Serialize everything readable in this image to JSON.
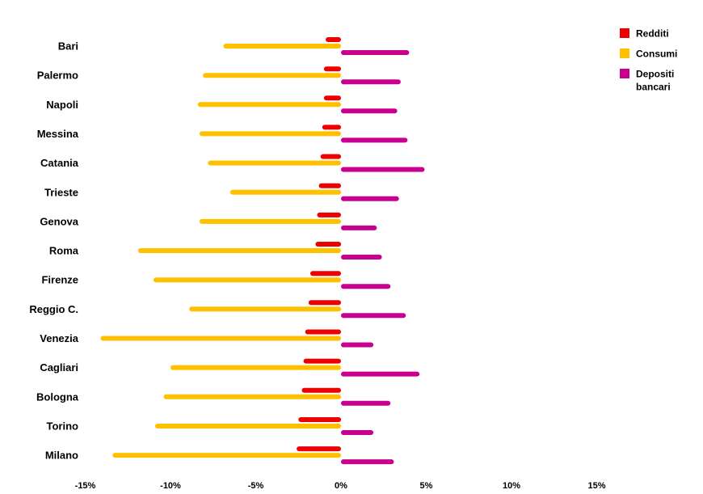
{
  "chart_data": {
    "type": "bar",
    "orientation": "horizontal",
    "categories": [
      "Bari",
      "Palermo",
      "Napoli",
      "Messina",
      "Catania",
      "Trieste",
      "Genova",
      "Roma",
      "Firenze",
      "Reggio C.",
      "Venezia",
      "Cagliari",
      "Bologna",
      "Torino",
      "Milano"
    ],
    "series": [
      {
        "name": "Redditi",
        "color": "#ee0000",
        "values": [
          -0.9,
          -1.0,
          -1.0,
          -1.1,
          -1.2,
          -1.3,
          -1.4,
          -1.5,
          -1.8,
          -1.9,
          -2.1,
          -2.2,
          -2.3,
          -2.5,
          -2.6
        ]
      },
      {
        "name": "Consumi",
        "color": "#ffc000",
        "values": [
          -6.9,
          -8.1,
          -8.4,
          -8.3,
          -7.8,
          -6.5,
          -8.3,
          -11.9,
          -11.0,
          -8.9,
          -14.1,
          -10.0,
          -10.4,
          -10.9,
          -13.4
        ]
      },
      {
        "name": "Depositi\nbancari",
        "color": "#c9008f",
        "values": [
          4.0,
          3.5,
          3.3,
          3.9,
          4.9,
          3.4,
          2.1,
          2.4,
          2.9,
          3.8,
          1.9,
          4.6,
          2.9,
          1.9,
          3.1
        ]
      }
    ],
    "xlim": [
      -15,
      15
    ],
    "xticks": [
      "-15%",
      "-10%",
      "-5%",
      "0%",
      "5%",
      "10%",
      "15%"
    ],
    "xtick_values": [
      -15,
      -10,
      -5,
      0,
      5,
      10,
      15
    ],
    "legend_position": "top-right",
    "grid": false,
    "title": "",
    "xlabel": "",
    "ylabel": ""
  }
}
